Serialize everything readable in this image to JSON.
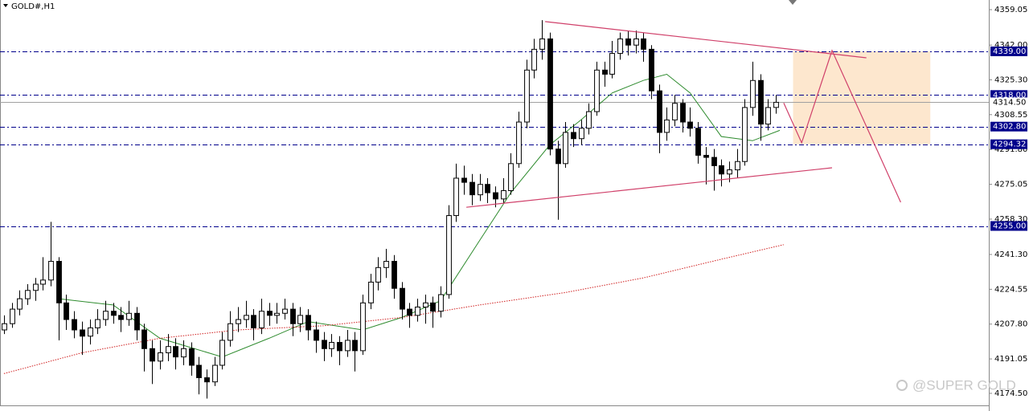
{
  "chart_data": {
    "type": "candlestick",
    "title": "GOLD#,H1",
    "watermark": "@SUPER GOLD",
    "xlim": [
      -0.5,
      126.3
    ],
    "ylim": [
      4168.7,
      4363.7
    ],
    "yticks": [
      {
        "value": 4359.05,
        "label": "4359.05"
      },
      {
        "value": 4342,
        "label": "4342.00"
      },
      {
        "value": 4325.3,
        "label": "4325.30"
      },
      {
        "value": 4308.55,
        "label": "4308.55"
      },
      {
        "value": 4291.8,
        "label": "4291.80"
      },
      {
        "value": 4275.05,
        "label": "4275.05"
      },
      {
        "value": 4258.3,
        "label": "4258.30"
      },
      {
        "value": 4241.3,
        "label": "4241.30"
      },
      {
        "value": 4224.55,
        "label": "4224.55"
      },
      {
        "value": 4207.8,
        "label": "4207.80"
      },
      {
        "value": 4191.05,
        "label": "4191.05"
      },
      {
        "value": 4174.5,
        "label": "4174.50"
      }
    ],
    "bull_color": "#ffffff",
    "bear_color": "#000000",
    "ohlc": [
      [
        4205,
        4212,
        4203,
        4208
      ],
      [
        4208,
        4218,
        4206,
        4215
      ],
      [
        4215,
        4224,
        4212,
        4220
      ],
      [
        4220,
        4227,
        4217,
        4224
      ],
      [
        4224,
        4230,
        4219,
        4227
      ],
      [
        4227,
        4240,
        4224,
        4229
      ],
      [
        4229,
        4257,
        4226,
        4238
      ],
      [
        4238,
        4240,
        4200,
        4218
      ],
      [
        4218,
        4222,
        4205,
        4210
      ],
      [
        4210,
        4214,
        4201,
        4205
      ],
      [
        4205,
        4209,
        4193,
        4202
      ],
      [
        4202,
        4210,
        4198,
        4206
      ],
      [
        4206,
        4215,
        4203,
        4210
      ],
      [
        4210,
        4219,
        4207,
        4214
      ],
      [
        4214,
        4218,
        4208,
        4212
      ],
      [
        4212,
        4216,
        4204,
        4210
      ],
      [
        4210,
        4219,
        4207,
        4213
      ],
      [
        4213,
        4216,
        4200,
        4205
      ],
      [
        4205,
        4208,
        4185,
        4196
      ],
      [
        4196,
        4200,
        4179,
        4190
      ],
      [
        4190,
        4200,
        4186,
        4194
      ],
      [
        4194,
        4203,
        4190,
        4197
      ],
      [
        4197,
        4201,
        4186,
        4192
      ],
      [
        4192,
        4200,
        4188,
        4196
      ],
      [
        4196,
        4199,
        4183,
        4188
      ],
      [
        4188,
        4192,
        4174,
        4182
      ],
      [
        4182,
        4186,
        4172,
        4180
      ],
      [
        4180,
        4192,
        4178,
        4188
      ],
      [
        4188,
        4204,
        4186,
        4200
      ],
      [
        4200,
        4214,
        4197,
        4208
      ],
      [
        4208,
        4216,
        4204,
        4210
      ],
      [
        4210,
        4219,
        4206,
        4212
      ],
      [
        4212,
        4215,
        4200,
        4206
      ],
      [
        4206,
        4220,
        4203,
        4214
      ],
      [
        4214,
        4218,
        4207,
        4212
      ],
      [
        4212,
        4218,
        4208,
        4213
      ],
      [
        4213,
        4220,
        4210,
        4215
      ],
      [
        4215,
        4218,
        4202,
        4208
      ],
      [
        4208,
        4216,
        4204,
        4212
      ],
      [
        4212,
        4215,
        4200,
        4205
      ],
      [
        4205,
        4209,
        4194,
        4200
      ],
      [
        4200,
        4204,
        4190,
        4196
      ],
      [
        4196,
        4203,
        4192,
        4199
      ],
      [
        4199,
        4202,
        4188,
        4195
      ],
      [
        4195,
        4205,
        4192,
        4200
      ],
      [
        4200,
        4204,
        4185,
        4195
      ],
      [
        4195,
        4222,
        4193,
        4218
      ],
      [
        4218,
        4232,
        4215,
        4228
      ],
      [
        4228,
        4240,
        4224,
        4235
      ],
      [
        4235,
        4244,
        4230,
        4238
      ],
      [
        4238,
        4241,
        4220,
        4225
      ],
      [
        4225,
        4228,
        4210,
        4215
      ],
      [
        4215,
        4218,
        4206,
        4212
      ],
      [
        4212,
        4220,
        4209,
        4216
      ],
      [
        4216,
        4222,
        4208,
        4218
      ],
      [
        4218,
        4221,
        4206,
        4214
      ],
      [
        4214,
        4226,
        4211,
        4222
      ],
      [
        4222,
        4265,
        4220,
        4260
      ],
      [
        4260,
        4285,
        4257,
        4278
      ],
      [
        4278,
        4284,
        4270,
        4276
      ],
      [
        4276,
        4280,
        4265,
        4270
      ],
      [
        4270,
        4280,
        4267,
        4275
      ],
      [
        4275,
        4278,
        4266,
        4271
      ],
      [
        4271,
        4274,
        4264,
        4268
      ],
      [
        4268,
        4278,
        4266,
        4272
      ],
      [
        4272,
        4290,
        4270,
        4285
      ],
      [
        4285,
        4310,
        4283,
        4305
      ],
      [
        4305,
        4335,
        4302,
        4330
      ],
      [
        4330,
        4345,
        4326,
        4340
      ],
      [
        4340,
        4354,
        4335,
        4345
      ],
      [
        4345,
        4348,
        4289,
        4292
      ],
      [
        4292,
        4296,
        4258,
        4285
      ],
      [
        4285,
        4305,
        4283,
        4300
      ],
      [
        4300,
        4304,
        4293,
        4297
      ],
      [
        4297,
        4306,
        4294,
        4302
      ],
      [
        4302,
        4314,
        4299,
        4310
      ],
      [
        4310,
        4334,
        4308,
        4330
      ],
      [
        4330,
        4334,
        4322,
        4328
      ],
      [
        4328,
        4344,
        4326,
        4338
      ],
      [
        4338,
        4348,
        4335,
        4345
      ],
      [
        4345,
        4349,
        4337,
        4342
      ],
      [
        4342,
        4349,
        4338,
        4345
      ],
      [
        4345,
        4348,
        4334,
        4340
      ],
      [
        4340,
        4342,
        4316,
        4320
      ],
      [
        4320,
        4323,
        4290,
        4300
      ],
      [
        4300,
        4312,
        4296,
        4306
      ],
      [
        4306,
        4318,
        4303,
        4314
      ],
      [
        4314,
        4316,
        4300,
        4305
      ],
      [
        4305,
        4312,
        4298,
        4302
      ],
      [
        4302,
        4305,
        4285,
        4289
      ],
      [
        4289,
        4293,
        4275,
        4288
      ],
      [
        4288,
        4292,
        4272,
        4284
      ],
      [
        4284,
        4287,
        4274,
        4280
      ],
      [
        4280,
        4286,
        4276,
        4282
      ],
      [
        4282,
        4292,
        4278,
        4286
      ],
      [
        4286,
        4316,
        4284,
        4312
      ],
      [
        4312,
        4334,
        4308,
        4325
      ],
      [
        4325,
        4328,
        4296,
        4304
      ],
      [
        4304,
        4316,
        4301,
        4312
      ],
      [
        4312,
        4318,
        4309,
        4314.5
      ]
    ],
    "lines": [
      {
        "color": "#2e8b2e",
        "style": "solid",
        "x": [
          7,
          14,
          20,
          28,
          34,
          39,
          46,
          51,
          56,
          61,
          65,
          70,
          74,
          78,
          82,
          85,
          88,
          92,
          96,
          99.5
        ],
        "values": [
          4220,
          4217,
          4201,
          4192,
          4201,
          4209,
          4205,
          4211,
          4219,
          4248,
          4271,
          4294,
          4306,
          4319,
          4325,
          4328,
          4319,
          4298,
          4296,
          4301
        ]
      },
      {
        "color": "#d02020",
        "style": "dotted",
        "x": [
          0,
          10,
          20,
          30,
          41,
          51,
          61,
          72,
          82,
          92,
          100
        ],
        "values": [
          4184,
          4194,
          4201,
          4205,
          4207,
          4211,
          4217,
          4223,
          4230,
          4239,
          4246
        ]
      }
    ],
    "levels": [
      {
        "value": 4339,
        "label": "4339.00",
        "color": "#00008b",
        "style": "dashdot"
      },
      {
        "value": 4318,
        "label": "4318.00",
        "color": "#00008b",
        "style": "dashdot"
      },
      {
        "value": 4314.5,
        "label": "4314.50",
        "color": "#a0a0a0",
        "style": "solid"
      },
      {
        "value": 4302.8,
        "label": "4302.80",
        "color": "#00008b",
        "style": "dashdot"
      },
      {
        "value": 4294.32,
        "label": "4294.32",
        "color": "#00008b",
        "style": "dashdot"
      },
      {
        "value": 4255,
        "label": "4255.00",
        "color": "#00008b",
        "style": "dashdot"
      }
    ],
    "zone": {
      "x": [
        101.2,
        118.8
      ],
      "y": [
        4339,
        4294.32
      ],
      "color": "#fde3c6"
    },
    "trendlines": [
      {
        "x": [
          69.4,
          110.6
        ],
        "y": [
          4353.3,
          4335.9
        ],
        "color": "#d0406a"
      },
      {
        "x": [
          59.3,
          106.2
        ],
        "y": [
          4264,
          4283
        ],
        "color": "#d0406a"
      },
      {
        "x": [
          100,
          102.3,
          106.2,
          115
        ],
        "y": [
          4314.2,
          4295,
          4339.4,
          4266.4
        ],
        "color": "#d0406a"
      }
    ]
  }
}
